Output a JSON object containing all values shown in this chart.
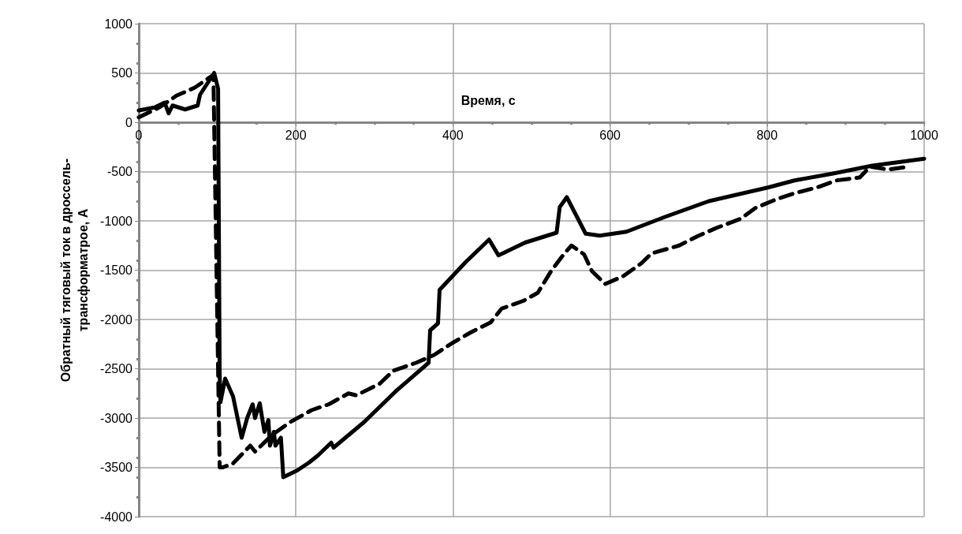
{
  "chart_data": {
    "type": "line",
    "xlabel": "Время, с",
    "ylabel": "Обратный тяговый ток в дроссель-\nтрансформатрое, А",
    "xlim": [
      0,
      1000
    ],
    "xticks": [
      0,
      200,
      400,
      600,
      800,
      1000
    ],
    "ylim": [
      -4000,
      1000
    ],
    "yticks": [
      -4000,
      -3500,
      -3000,
      -2500,
      -2000,
      -1500,
      -1000,
      -500,
      0,
      500,
      1000
    ],
    "grid": true,
    "marker": "none",
    "series": [
      {
        "color": "#000000",
        "line_style": "solid",
        "x": [
          0,
          20,
          33,
          38,
          43,
          59,
          75,
          78,
          96,
          101,
          103,
          104,
          110,
          120,
          131,
          138,
          145,
          148,
          154,
          160,
          165,
          167,
          172,
          174,
          181,
          184,
          202,
          217,
          228,
          245,
          248,
          287,
          327,
          369,
          371,
          381,
          383,
          416,
          446,
          458,
          492,
          532,
          536,
          545,
          569,
          587,
          604,
          621,
          670,
          726,
          802,
          835,
          884,
          934,
          1000
        ],
        "values": [
          120,
          150,
          200,
          90,
          170,
          130,
          170,
          280,
          500,
          340,
          -2560,
          -2840,
          -2600,
          -2780,
          -3200,
          -3000,
          -2860,
          -3000,
          -2850,
          -3140,
          -3020,
          -3280,
          -3140,
          -3280,
          -3200,
          -3600,
          -3530,
          -3450,
          -3380,
          -3250,
          -3300,
          -3040,
          -2730,
          -2440,
          -2110,
          -2040,
          -1700,
          -1420,
          -1190,
          -1350,
          -1220,
          -1120,
          -860,
          -760,
          -1130,
          -1150,
          -1130,
          -1110,
          -960,
          -800,
          -660,
          -590,
          -520,
          -440,
          -370
        ]
      },
      {
        "color": "#000000",
        "line_style": "dashed",
        "x": [
          0,
          26,
          48,
          71,
          95,
          103,
          107,
          120,
          142,
          148,
          170,
          193,
          220,
          242,
          267,
          277,
          307,
          324,
          353,
          376,
          399,
          423,
          448,
          462,
          490,
          508,
          525,
          541,
          551,
          567,
          577,
          594,
          617,
          640,
          653,
          688,
          713,
          736,
          766,
          785,
          812,
          835,
          864,
          888,
          918,
          931,
          954,
          980
        ],
        "values": [
          50,
          150,
          270,
          350,
          480,
          -3500,
          -3500,
          -3460,
          -3280,
          -3340,
          -3170,
          -3040,
          -2920,
          -2860,
          -2750,
          -2770,
          -2650,
          -2520,
          -2440,
          -2360,
          -2240,
          -2130,
          -2030,
          -1890,
          -1810,
          -1730,
          -1510,
          -1340,
          -1250,
          -1340,
          -1510,
          -1640,
          -1560,
          -1430,
          -1330,
          -1250,
          -1150,
          -1070,
          -980,
          -870,
          -780,
          -720,
          -660,
          -590,
          -560,
          -450,
          -480,
          -450
        ]
      }
    ]
  }
}
